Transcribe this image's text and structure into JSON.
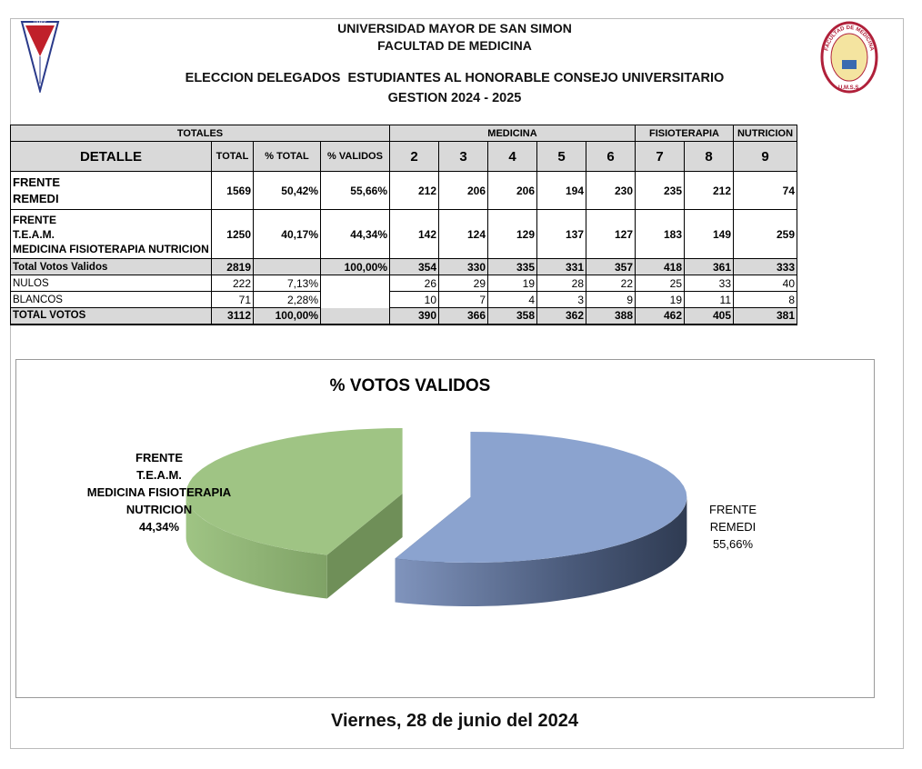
{
  "header": {
    "university": "UNIVERSIDAD MAYOR DE SAN SIMON",
    "faculty": "FACULTAD DE MEDICINA",
    "title": "ELECCION DELEGADOS  ESTUDIANTES AL HONORABLE CONSEJO UNIVERSITARIO",
    "period": "GESTION 2024 - 2025",
    "logo_left": "UMSS",
    "logo_right": {
      "arc": "FACULTAD DE MEDICINA",
      "bottom": "U.M.S.S."
    }
  },
  "table": {
    "groups": [
      "TOTALES",
      "MEDICINA",
      "FISIOTERAPIA",
      "NUTRICION"
    ],
    "columns": [
      "DETALLE",
      "TOTAL",
      "% TOTAL",
      "% VALIDOS",
      "2",
      "3",
      "4",
      "5",
      "6",
      "7",
      "8",
      "9"
    ],
    "rows": [
      {
        "label": [
          "FRENTE",
          "REMEDI"
        ],
        "cells": [
          "1569",
          "50,42%",
          "55,66%",
          "212",
          "206",
          "206",
          "194",
          "230",
          "235",
          "212",
          "74"
        ]
      },
      {
        "label": [
          "FRENTE",
          "T.E.A.M.",
          "MEDICINA FISIOTERAPIA NUTRICION"
        ],
        "cells": [
          "1250",
          "40,17%",
          "44,34%",
          "142",
          "124",
          "129",
          "137",
          "127",
          "183",
          "149",
          "259"
        ]
      },
      {
        "label": [
          "Total Votos Validos"
        ],
        "cells": [
          "2819",
          null,
          "100,00%",
          "354",
          "330",
          "335",
          "331",
          "357",
          "418",
          "361",
          "333"
        ]
      },
      {
        "label": [
          "NULOS"
        ],
        "cells": [
          "222",
          "7,13%",
          null,
          "26",
          "29",
          "19",
          "28",
          "22",
          "25",
          "33",
          "40"
        ]
      },
      {
        "label": [
          "BLANCOS"
        ],
        "cells": [
          "71",
          "2,28%",
          null,
          "10",
          "7",
          "4",
          "3",
          "9",
          "19",
          "11",
          "8"
        ]
      },
      {
        "label": [
          "TOTAL VOTOS"
        ],
        "cells": [
          "3112",
          "100,00%",
          null,
          "390",
          "366",
          "358",
          "362",
          "388",
          "462",
          "405",
          "381"
        ]
      }
    ]
  },
  "chart_data": {
    "type": "pie",
    "title": "% VOTOS VALIDOS",
    "categories": [
      [
        "FRENTE",
        "REMEDI"
      ],
      [
        "FRENTE",
        "T.E.A.M.",
        "MEDICINA FISIOTERAPIA",
        "NUTRICION"
      ]
    ],
    "values": [
      55.66,
      44.34
    ],
    "value_labels": [
      "55,66%",
      "44,34%"
    ],
    "colors": [
      "#8ba3cf",
      "#9fc484"
    ]
  },
  "footer": {
    "date": "Viernes, 28 de junio del 2024"
  }
}
